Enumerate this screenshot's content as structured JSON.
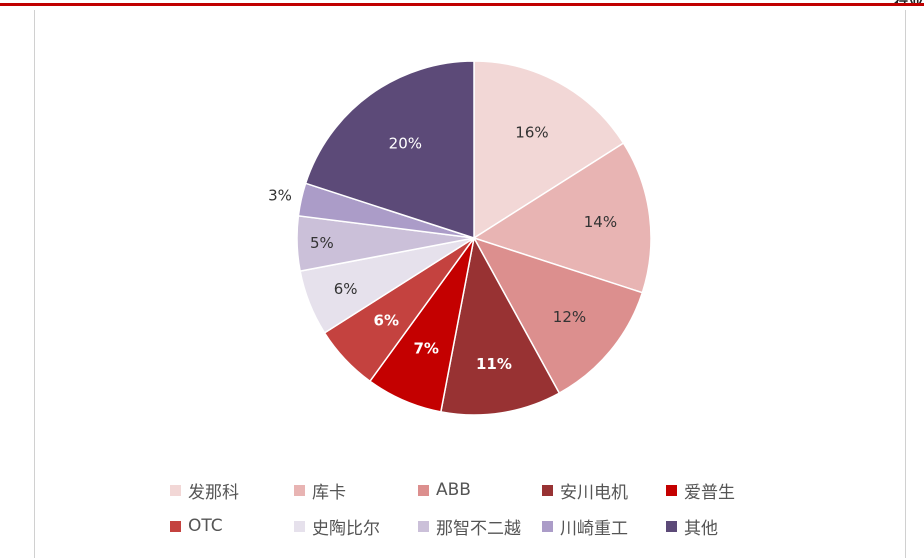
{
  "header": {
    "corner_text": "行业"
  },
  "chart_data": {
    "type": "pie",
    "title": "",
    "start_angle_deg": 0,
    "direction": "clockwise",
    "labels": [
      "发那科",
      "库卡",
      "ABB",
      "安川电机",
      "爱普生",
      "OTC",
      "史陶比尔",
      "那智不二越",
      "川崎重工",
      "其他"
    ],
    "values": [
      16,
      14,
      12,
      11,
      7,
      6,
      6,
      5,
      3,
      20
    ],
    "data_labels": [
      "16%",
      "14%",
      "12%",
      "11%",
      "7%",
      "6%",
      "6%",
      "5%",
      "3%",
      "20%"
    ],
    "colors": [
      "#f2d7d6",
      "#e8b4b3",
      "#dc8f8e",
      "#983233",
      "#c40000",
      "#c4423f",
      "#e6e1ec",
      "#cbc0d9",
      "#ab9cc8",
      "#5c4a78"
    ],
    "label_colors": [
      "#333333",
      "#333333",
      "#333333",
      "#ffffff",
      "#ffffff",
      "#ffffff",
      "#333333",
      "#333333",
      "#333333",
      "#ffffff"
    ],
    "legend_position": "bottom"
  }
}
